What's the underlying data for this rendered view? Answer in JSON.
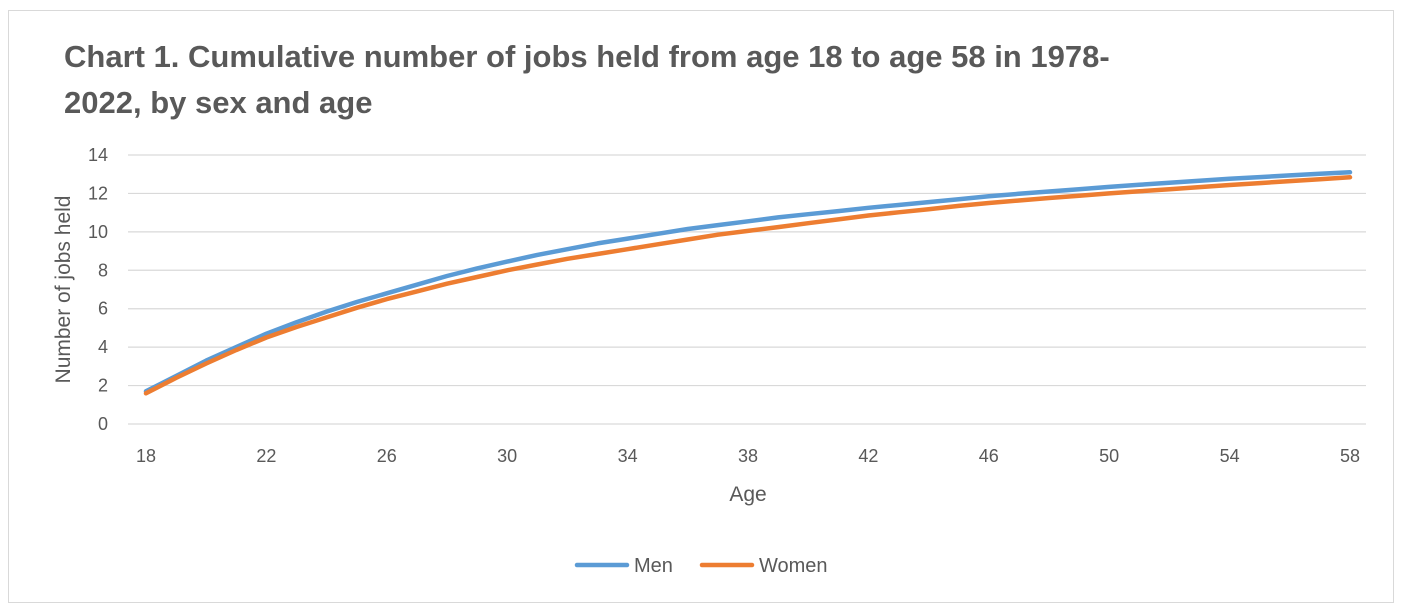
{
  "chart_data": {
    "type": "line",
    "title": "Chart 1. Cumulative number of jobs held from age 18 to age 58 in 1978-2022, by sex and age",
    "xlabel": "Age",
    "ylabel": "Number of jobs held",
    "xlim": [
      18,
      58
    ],
    "ylim": [
      0,
      14
    ],
    "x_ticks": [
      18,
      22,
      26,
      30,
      34,
      38,
      42,
      46,
      50,
      54,
      58
    ],
    "y_ticks": [
      0,
      2,
      4,
      6,
      8,
      10,
      12,
      14
    ],
    "grid": "horizontal",
    "legend_position": "bottom",
    "x": [
      18,
      19,
      20,
      21,
      22,
      23,
      24,
      25,
      26,
      27,
      28,
      29,
      30,
      31,
      32,
      33,
      34,
      35,
      36,
      37,
      38,
      39,
      40,
      41,
      42,
      43,
      44,
      45,
      46,
      47,
      48,
      49,
      50,
      51,
      52,
      53,
      54,
      55,
      56,
      57,
      58
    ],
    "series": [
      {
        "name": "Men",
        "color": "#5b9bd5",
        "values": [
          1.7,
          2.5,
          3.3,
          4.0,
          4.7,
          5.3,
          5.85,
          6.35,
          6.8,
          7.25,
          7.7,
          8.1,
          8.45,
          8.8,
          9.1,
          9.4,
          9.65,
          9.9,
          10.15,
          10.35,
          10.55,
          10.75,
          10.92,
          11.08,
          11.25,
          11.4,
          11.55,
          11.7,
          11.85,
          11.98,
          12.1,
          12.22,
          12.34,
          12.45,
          12.56,
          12.66,
          12.76,
          12.85,
          12.94,
          13.02,
          13.1
        ]
      },
      {
        "name": "Women",
        "color": "#ed7d31",
        "values": [
          1.6,
          2.4,
          3.15,
          3.85,
          4.5,
          5.05,
          5.55,
          6.05,
          6.5,
          6.9,
          7.3,
          7.65,
          8.0,
          8.3,
          8.6,
          8.85,
          9.1,
          9.35,
          9.6,
          9.85,
          10.05,
          10.25,
          10.45,
          10.65,
          10.85,
          11.02,
          11.18,
          11.35,
          11.5,
          11.63,
          11.76,
          11.88,
          12.0,
          12.11,
          12.22,
          12.33,
          12.44,
          12.54,
          12.64,
          12.74,
          12.84
        ]
      }
    ]
  }
}
